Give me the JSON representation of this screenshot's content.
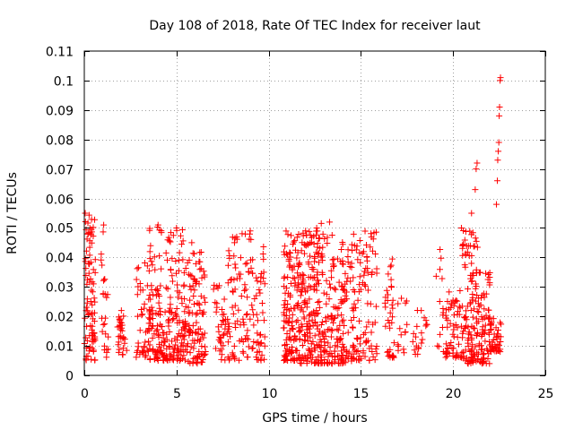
{
  "chart_data": {
    "type": "scatter",
    "title": "Day 108 of 2018, Rate Of TEC Index for receiver laut",
    "xlabel": "GPS time / hours",
    "ylabel": "ROTI / TECUs",
    "xlim": [
      0,
      25
    ],
    "ylim": [
      0,
      0.11
    ],
    "xticks": [
      0,
      5,
      10,
      15,
      20,
      25
    ],
    "xtick_labels": [
      "0",
      "5",
      "10",
      "15",
      "20",
      "25"
    ],
    "yticks": [
      0,
      0.01,
      0.02,
      0.03,
      0.04,
      0.05,
      0.06,
      0.07,
      0.08,
      0.09,
      0.1,
      0.11
    ],
    "ytick_labels": [
      "0",
      "0.01",
      "0.02",
      "0.03",
      "0.04",
      "0.05",
      "0.06",
      "0.07",
      "0.08",
      "0.09",
      "0.1",
      "0.11"
    ],
    "grid": true,
    "marker": "+",
    "marker_color": "#ff0000",
    "series": [
      {
        "name": "ROTI",
        "clusters": [
          {
            "x": [
              0.0,
              0.6
            ],
            "y": [
              0.005,
              0.055
            ],
            "n": 90
          },
          {
            "x": [
              0.9,
              1.3
            ],
            "y": [
              0.005,
              0.051
            ],
            "n": 25
          },
          {
            "x": [
              1.8,
              2.3
            ],
            "y": [
              0.007,
              0.022
            ],
            "n": 30
          },
          {
            "x": [
              2.8,
              3.6
            ],
            "y": [
              0.006,
              0.04
            ],
            "n": 45
          },
          {
            "x": [
              3.5,
              4.5
            ],
            "y": [
              0.005,
              0.051
            ],
            "n": 110
          },
          {
            "x": [
              4.5,
              5.5
            ],
            "y": [
              0.005,
              0.05
            ],
            "n": 110
          },
          {
            "x": [
              5.5,
              6.6
            ],
            "y": [
              0.004,
              0.045
            ],
            "n": 110
          },
          {
            "x": [
              7.0,
              7.8
            ],
            "y": [
              0.005,
              0.032
            ],
            "n": 40
          },
          {
            "x": [
              7.8,
              9.2
            ],
            "y": [
              0.005,
              0.049
            ],
            "n": 90
          },
          {
            "x": [
              9.2,
              9.8
            ],
            "y": [
              0.005,
              0.044
            ],
            "n": 40
          },
          {
            "x": [
              10.8,
              11.6
            ],
            "y": [
              0.005,
              0.049
            ],
            "n": 120
          },
          {
            "x": [
              11.6,
              12.6
            ],
            "y": [
              0.004,
              0.049
            ],
            "n": 150
          },
          {
            "x": [
              12.6,
              13.6
            ],
            "y": [
              0.004,
              0.052
            ],
            "n": 120
          },
          {
            "x": [
              13.6,
              14.6
            ],
            "y": [
              0.004,
              0.046
            ],
            "n": 100
          },
          {
            "x": [
              14.6,
              15.9
            ],
            "y": [
              0.005,
              0.049
            ],
            "n": 90
          },
          {
            "x": [
              16.3,
              16.8
            ],
            "y": [
              0.006,
              0.04
            ],
            "n": 35
          },
          {
            "x": [
              17.0,
              17.5
            ],
            "y": [
              0.007,
              0.028
            ],
            "n": 14
          },
          {
            "x": [
              17.8,
              18.6
            ],
            "y": [
              0.007,
              0.027
            ],
            "n": 20
          },
          {
            "x": [
              19.0,
              19.6
            ],
            "y": [
              0.008,
              0.044
            ],
            "n": 14
          },
          {
            "x": [
              19.6,
              20.5
            ],
            "y": [
              0.006,
              0.03
            ],
            "n": 60
          },
          {
            "x": [
              20.5,
              21.4
            ],
            "y": [
              0.004,
              0.05
            ],
            "n": 120
          },
          {
            "x": [
              21.4,
              22.0
            ],
            "y": [
              0.004,
              0.04
            ],
            "n": 60
          },
          {
            "x": [
              22.0,
              22.6
            ],
            "y": [
              0.008,
              0.02
            ],
            "n": 45
          }
        ],
        "points": [
          [
            0.05,
            0.055
          ],
          [
            0.3,
            0.05
          ],
          [
            1.05,
            0.051
          ],
          [
            4.0,
            0.051
          ],
          [
            5.0,
            0.05
          ],
          [
            9.0,
            0.049
          ],
          [
            12.0,
            0.049
          ],
          [
            13.3,
            0.052
          ],
          [
            20.45,
            0.05
          ],
          [
            21.0,
            0.055
          ],
          [
            21.2,
            0.063
          ],
          [
            21.25,
            0.07
          ],
          [
            21.3,
            0.072
          ],
          [
            22.35,
            0.058
          ],
          [
            22.4,
            0.066
          ],
          [
            22.42,
            0.073
          ],
          [
            22.45,
            0.076
          ],
          [
            22.48,
            0.079
          ],
          [
            22.5,
            0.088
          ],
          [
            22.52,
            0.091
          ],
          [
            22.55,
            0.1
          ],
          [
            22.57,
            0.101
          ]
        ]
      }
    ]
  }
}
